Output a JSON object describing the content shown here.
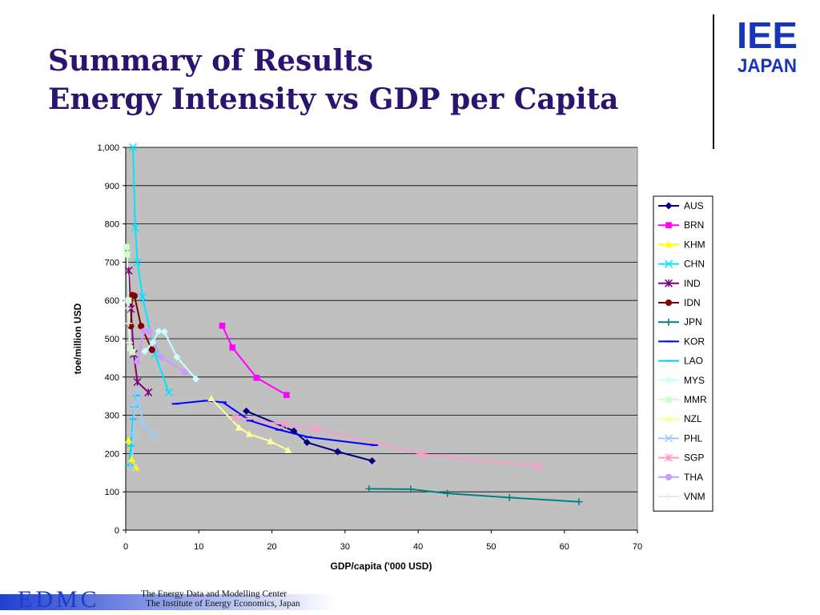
{
  "title": {
    "line1": "Summary of Results",
    "line2": "Energy Intensity vs GDP per Capita"
  },
  "logo": {
    "top": "IEE",
    "bottom": "JAPAN"
  },
  "footer": {
    "brand": "EDMC",
    "line1": "The Energy Data and Modelling Center",
    "line2": "The Institute of Energy Economics, Japan"
  },
  "chart_data": {
    "type": "line",
    "xlabel": "GDP/capita ('000 USD)",
    "ylabel": "toe/million USD",
    "xlim": [
      0,
      70
    ],
    "ylim": [
      0,
      1000
    ],
    "xticks": [
      0,
      10,
      20,
      30,
      40,
      50,
      60,
      70
    ],
    "yticks": [
      "0",
      "100",
      "200",
      "300",
      "400",
      "500",
      "600",
      "700",
      "800",
      "900",
      "1,000"
    ],
    "grid": "horizontal",
    "legend_position": "right",
    "plot_background": "#c0c0c0",
    "series": [
      {
        "name": "AUS",
        "color": "#000080",
        "marker": "diamond",
        "x": [
          16.5,
          23.0,
          24.8,
          29.0,
          33.7
        ],
        "y": [
          311,
          259,
          229,
          205,
          181
        ]
      },
      {
        "name": "BRN",
        "color": "#ff00ff",
        "marker": "square",
        "x": [
          13.2,
          14.6,
          17.9,
          22.0
        ],
        "y": [
          534,
          477,
          398,
          353
        ]
      },
      {
        "name": "KHM",
        "color": "#ffff00",
        "marker": "triangle",
        "x": [
          0.4,
          0.8,
          1.4
        ],
        "y": [
          235,
          185,
          163
        ]
      },
      {
        "name": "CHN",
        "color": "#00e5ff",
        "marker": "x",
        "x": [
          1.0,
          1.3,
          1.6,
          2.3,
          4.0,
          5.9
        ],
        "y": [
          1000,
          790,
          700,
          610,
          460,
          360
        ]
      },
      {
        "name": "IND",
        "color": "#800080",
        "marker": "star",
        "x": [
          0.4,
          0.7,
          1.1,
          1.6,
          3.1
        ],
        "y": [
          678,
          578,
          460,
          387,
          360
        ]
      },
      {
        "name": "IDN",
        "color": "#800000",
        "marker": "circle",
        "x": [
          0.7,
          0.9,
          1.2,
          2.1,
          3.6
        ],
        "y": [
          533,
          614,
          612,
          533,
          471
        ]
      },
      {
        "name": "JPN",
        "color": "#008080",
        "marker": "plus",
        "x": [
          33.3,
          39.0,
          44.0,
          52.5,
          62.0
        ],
        "y": [
          108,
          107,
          96,
          85,
          74
        ]
      },
      {
        "name": "KOR",
        "color": "#0000ff",
        "marker": "dash",
        "x": [
          6.8,
          11.0,
          13.3,
          17.0,
          21.0,
          25.0,
          34.0
        ],
        "y": [
          330,
          338,
          334,
          286,
          262,
          243,
          222
        ]
      },
      {
        "name": "LAO",
        "color": "#00ccff",
        "marker": "dash",
        "x": [
          0.5,
          0.7,
          1.0,
          1.2,
          1.5
        ],
        "y": [
          170,
          220,
          290,
          322,
          352
        ]
      },
      {
        "name": "MYS",
        "color": "#ccffff",
        "marker": "diamond",
        "x": [
          2.6,
          3.7,
          4.5,
          5.3,
          7.0,
          9.6
        ],
        "y": [
          467,
          490,
          520,
          518,
          452,
          395
        ]
      },
      {
        "name": "MMR",
        "color": "#ccffcc",
        "marker": "square",
        "x": [
          0.1,
          0.2,
          0.4,
          0.6,
          0.9
        ],
        "y": [
          740,
          720,
          600,
          475,
          465
        ]
      },
      {
        "name": "NZL",
        "color": "#ffff99",
        "marker": "triangle",
        "x": [
          11.7,
          15.5,
          16.9,
          19.8,
          22.2
        ],
        "y": [
          344,
          268,
          251,
          232,
          209
        ]
      },
      {
        "name": "PHL",
        "color": "#99ccff",
        "marker": "x",
        "x": [
          0.9,
          1.0,
          1.2,
          1.7,
          2.4,
          3.8
        ],
        "y": [
          165,
          250,
          325,
          360,
          273,
          248
        ]
      },
      {
        "name": "SGP",
        "color": "#ff99cc",
        "marker": "star",
        "x": [
          15.0,
          21.6,
          26.0,
          40.5,
          56.5
        ],
        "y": [
          295,
          276,
          264,
          199,
          167
        ]
      },
      {
        "name": "THA",
        "color": "#cc99ff",
        "marker": "circle",
        "x": [
          1.6,
          2.5,
          3.2,
          4.8,
          8.1
        ],
        "y": [
          440,
          520,
          520,
          452,
          412
        ]
      },
      {
        "name": "VNM",
        "color": "#e8e8e8",
        "marker": "plus",
        "x": [
          0.2,
          0.3,
          0.4,
          0.5,
          0.7
        ],
        "y": [
          600,
          580,
          540,
          490,
          470
        ]
      }
    ]
  }
}
